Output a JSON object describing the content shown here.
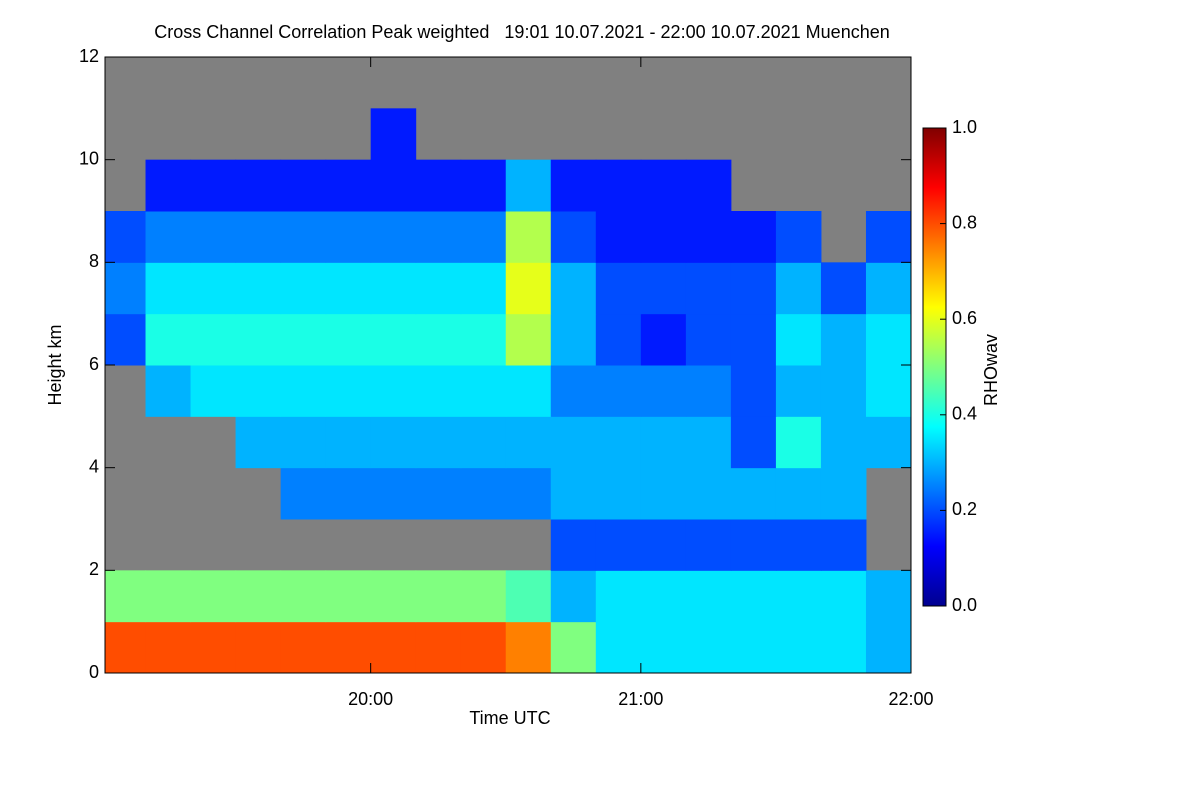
{
  "chart_data": {
    "type": "heatmap",
    "title": "Cross Channel Correlation Peak weighted   19:01 10.07.2021 - 22:00 10.07.2021 Muenchen",
    "x_label": "Time UTC",
    "y_label": "Height km",
    "z_label": "RHOwav",
    "x_edges": [
      1141,
      1150,
      1160,
      1170,
      1180,
      1190,
      1200,
      1210,
      1220,
      1230,
      1240,
      1250,
      1260,
      1270,
      1280,
      1290,
      1300,
      1310,
      1320
    ],
    "y_edges": [
      0,
      1,
      2,
      3,
      4,
      5,
      6,
      7,
      8,
      9,
      10,
      11,
      12
    ],
    "z": [
      [
        0.8,
        0.8,
        0.8,
        0.8,
        0.8,
        0.8,
        0.8,
        0.8,
        0.8,
        0.75,
        0.5,
        0.35,
        0.35,
        0.35,
        0.35,
        0.35,
        0.35,
        0.3
      ],
      [
        0.5,
        0.5,
        0.5,
        0.5,
        0.5,
        0.5,
        0.5,
        0.5,
        0.5,
        0.45,
        0.3,
        0.35,
        0.35,
        0.35,
        0.35,
        0.35,
        0.35,
        0.3
      ],
      [
        null,
        null,
        null,
        null,
        null,
        null,
        null,
        null,
        null,
        null,
        0.2,
        0.2,
        0.2,
        0.2,
        0.2,
        0.2,
        0.2,
        null
      ],
      [
        null,
        null,
        null,
        null,
        0.25,
        0.25,
        0.25,
        0.25,
        0.25,
        0.25,
        0.3,
        0.3,
        0.3,
        0.3,
        0.3,
        0.3,
        0.3,
        null
      ],
      [
        null,
        null,
        null,
        0.3,
        0.3,
        0.3,
        0.3,
        0.3,
        0.3,
        0.3,
        0.3,
        0.3,
        0.3,
        0.3,
        0.2,
        0.4,
        0.3,
        0.3
      ],
      [
        null,
        0.3,
        0.35,
        0.35,
        0.35,
        0.35,
        0.35,
        0.35,
        0.35,
        0.35,
        0.25,
        0.25,
        0.25,
        0.25,
        0.2,
        0.3,
        0.3,
        0.35
      ],
      [
        0.2,
        0.4,
        0.4,
        0.4,
        0.4,
        0.4,
        0.4,
        0.4,
        0.4,
        0.55,
        0.3,
        0.2,
        0.15,
        0.2,
        0.2,
        0.35,
        0.3,
        0.35
      ],
      [
        0.25,
        0.35,
        0.35,
        0.35,
        0.35,
        0.35,
        0.35,
        0.35,
        0.35,
        0.6,
        0.3,
        0.2,
        0.2,
        0.2,
        0.2,
        0.3,
        0.2,
        0.3
      ],
      [
        0.2,
        0.25,
        0.25,
        0.25,
        0.25,
        0.25,
        0.25,
        0.25,
        0.25,
        0.55,
        0.2,
        0.15,
        0.15,
        0.15,
        0.15,
        0.2,
        null,
        0.2
      ],
      [
        null,
        0.15,
        0.15,
        0.15,
        0.15,
        0.15,
        0.15,
        0.15,
        0.15,
        0.3,
        0.15,
        0.15,
        0.15,
        0.15,
        null,
        null,
        null,
        null
      ],
      [
        null,
        null,
        null,
        null,
        null,
        null,
        0.15,
        null,
        null,
        null,
        null,
        null,
        null,
        null,
        null,
        null,
        null,
        null
      ],
      [
        null,
        null,
        null,
        null,
        null,
        null,
        null,
        null,
        null,
        null,
        null,
        null,
        null,
        null,
        null,
        null,
        null,
        null
      ]
    ],
    "xlim": [
      1141,
      1320
    ],
    "xticks": [
      {
        "value": 1200,
        "label": "20:00"
      },
      {
        "value": 1260,
        "label": "21:00"
      },
      {
        "value": 1320,
        "label": "22:00"
      }
    ],
    "ylim": [
      0,
      12
    ],
    "yticks": [
      0,
      2,
      4,
      6,
      8,
      10,
      12
    ],
    "zlim": [
      0,
      1
    ],
    "zticks": [
      {
        "value": 0,
        "label": "0.0"
      },
      0.2,
      0.4,
      0.6,
      0.8,
      {
        "value": 1,
        "label": "1.0"
      }
    ],
    "colormap": [
      "#00008f",
      "#0000ff",
      "#0080ff",
      "#00ffff",
      "#80ff80",
      "#ffff00",
      "#ff8000",
      "#ff0000",
      "#800000"
    ],
    "missing_color": "#808080"
  }
}
